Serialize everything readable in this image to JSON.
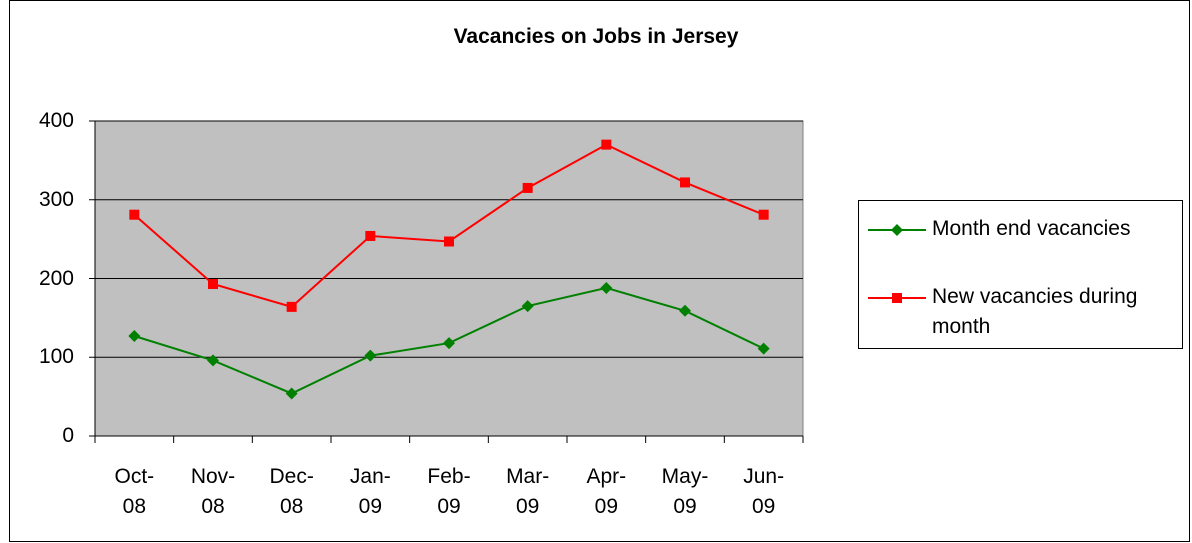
{
  "chart_data": {
    "type": "line",
    "title": "Vacancies on Jobs in Jersey",
    "categories": [
      "Oct-08",
      "Nov-08",
      "Dec-08",
      "Jan-09",
      "Feb-09",
      "Mar-09",
      "Apr-09",
      "May-09",
      "Jun-09"
    ],
    "series": [
      {
        "name": "Month end vacancies",
        "color": "#008000",
        "marker": "diamond",
        "values": [
          127,
          96,
          54,
          102,
          118,
          165,
          188,
          159,
          111
        ]
      },
      {
        "name": "New vacancies during month",
        "color": "#ff0000",
        "marker": "square",
        "values": [
          281,
          193,
          164,
          254,
          247,
          315,
          370,
          322,
          281
        ]
      }
    ],
    "ylim": [
      0,
      400
    ],
    "yticks": [
      0,
      100,
      200,
      300,
      400
    ],
    "grid": true,
    "plot_background": "#c0c0c0",
    "legend": "right"
  }
}
